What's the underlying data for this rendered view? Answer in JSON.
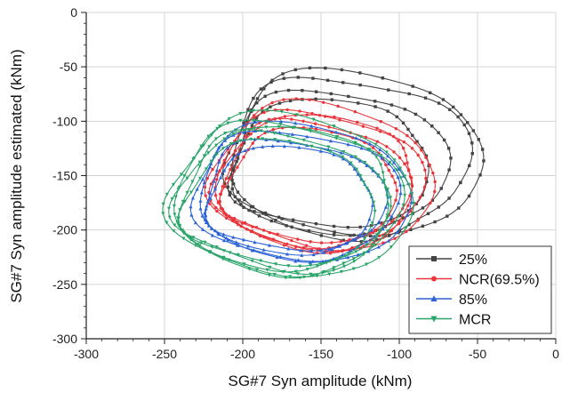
{
  "chart_data": {
    "type": "line",
    "xlabel": "SG#7 Syn amplitude (kNm)",
    "ylabel": "SG#7 Syn amplitude estimated (kNm)",
    "xlim": [
      -300,
      0
    ],
    "ylim": [
      -300,
      0
    ],
    "x_ticks": [
      -300,
      -250,
      -200,
      -150,
      -100,
      -50,
      0
    ],
    "y_ticks": [
      0,
      -50,
      -100,
      -150,
      -200,
      -250,
      -300
    ],
    "grid": true,
    "legend_position": "bottom-right",
    "series": [
      {
        "name": "25%",
        "color": "#444444",
        "marker": "square",
        "loops": [
          {
            "cx": -133,
            "cy": -133,
            "rx": 74,
            "ry": 70,
            "tilt": -18,
            "rot": 0,
            "irr": 0.05
          },
          {
            "cx": -140,
            "cy": -138,
            "rx": 67,
            "ry": 63,
            "tilt": -15,
            "rot": 0.8,
            "irr": 0.05
          },
          {
            "cx": -130,
            "cy": -130,
            "rx": 79,
            "ry": 72,
            "tilt": -20,
            "rot": 1.6,
            "irr": 0.04
          },
          {
            "cx": -145,
            "cy": -140,
            "rx": 61,
            "ry": 57,
            "tilt": -12,
            "rot": 2.5,
            "irr": 0.05
          }
        ]
      },
      {
        "name": "NCR(69.5%)",
        "color": "#e8363c",
        "marker": "circle",
        "loops": [
          {
            "cx": -152,
            "cy": -155,
            "rx": 64,
            "ry": 60,
            "tilt": -25,
            "rot": 0,
            "irr": 0.04
          },
          {
            "cx": -155,
            "cy": -158,
            "rx": 58,
            "ry": 55,
            "tilt": -22,
            "rot": 0.7,
            "irr": 0.05
          },
          {
            "cx": -150,
            "cy": -152,
            "rx": 69,
            "ry": 64,
            "tilt": -28,
            "rot": 1.5,
            "irr": 0.04
          },
          {
            "cx": -157,
            "cy": -160,
            "rx": 53,
            "ry": 50,
            "tilt": -20,
            "rot": 2.3,
            "irr": 0.05
          },
          {
            "cx": -153,
            "cy": -156,
            "rx": 61,
            "ry": 58,
            "tilt": -24,
            "rot": 3.1,
            "irr": 0.05
          }
        ]
      },
      {
        "name": "85%",
        "color": "#2b62d6",
        "marker": "triangle",
        "loops": [
          {
            "cx": -165,
            "cy": -168,
            "rx": 62,
            "ry": 56,
            "tilt": -18,
            "rot": 0,
            "irr": 0.04
          },
          {
            "cx": -168,
            "cy": -170,
            "rx": 56,
            "ry": 50,
            "tilt": -15,
            "rot": 0.9,
            "irr": 0.05
          },
          {
            "cx": -163,
            "cy": -166,
            "rx": 67,
            "ry": 60,
            "tilt": -20,
            "rot": 1.7,
            "irr": 0.04
          },
          {
            "cx": -170,
            "cy": -172,
            "rx": 51,
            "ry": 46,
            "tilt": -14,
            "rot": 2.6,
            "irr": 0.05
          }
        ]
      },
      {
        "name": "MCR",
        "color": "#2aa469",
        "marker": "down-triangle",
        "loops": [
          {
            "cx": -172,
            "cy": -171,
            "rx": 70,
            "ry": 66,
            "tilt": -25,
            "rot": 0,
            "irr": 0.04
          },
          {
            "cx": -175,
            "cy": -174,
            "rx": 64,
            "ry": 60,
            "tilt": -22,
            "rot": 0.8,
            "irr": 0.05
          },
          {
            "cx": -170,
            "cy": -169,
            "rx": 75,
            "ry": 70,
            "tilt": -28,
            "rot": 1.6,
            "irr": 0.04
          },
          {
            "cx": -177,
            "cy": -176,
            "rx": 59,
            "ry": 55,
            "tilt": -20,
            "rot": 2.4,
            "irr": 0.05
          },
          {
            "cx": -173,
            "cy": -172,
            "rx": 66,
            "ry": 63,
            "tilt": -24,
            "rot": 3.2,
            "irr": 0.05
          }
        ]
      }
    ]
  }
}
